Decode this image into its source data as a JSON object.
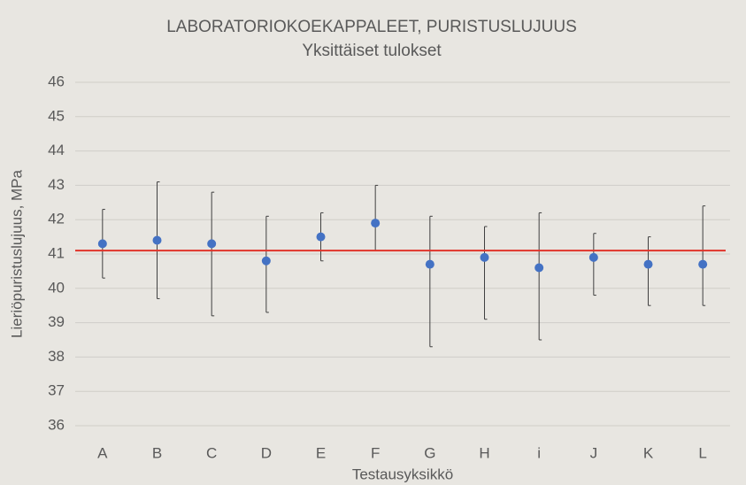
{
  "chart_data": {
    "type": "errorbar",
    "title": "LABORATORIOKOEKAPPALEET, PURISTUSLUJUUS",
    "subtitle": "Yksittäiset tulokset",
    "x_label": "Testausyksikkö",
    "y_label": "Lieriöpuristuslujuus, MPa",
    "categories": [
      "A",
      "B",
      "C",
      "D",
      "E",
      "F",
      "G",
      "H",
      "i",
      "J",
      "K",
      "L"
    ],
    "values": [
      41.3,
      41.4,
      41.3,
      40.8,
      41.5,
      41.9,
      40.7,
      40.9,
      40.6,
      40.9,
      40.7,
      40.7
    ],
    "min": [
      40.3,
      39.7,
      39.2,
      39.3,
      40.8,
      41.1,
      38.3,
      39.1,
      38.5,
      39.8,
      39.5,
      39.5
    ],
    "max": [
      42.3,
      43.1,
      42.8,
      42.1,
      42.2,
      43.0,
      42.1,
      41.8,
      42.2,
      41.6,
      41.5,
      42.4
    ],
    "color": "#4472c4",
    "error_color": "#404040",
    "reference_line": {
      "value": 41.1,
      "color": "#e0342a"
    },
    "ylim": [
      36,
      46
    ],
    "yticks": [
      36,
      37,
      38,
      39,
      40,
      41,
      42,
      43,
      44,
      45,
      46
    ],
    "grid": true
  }
}
